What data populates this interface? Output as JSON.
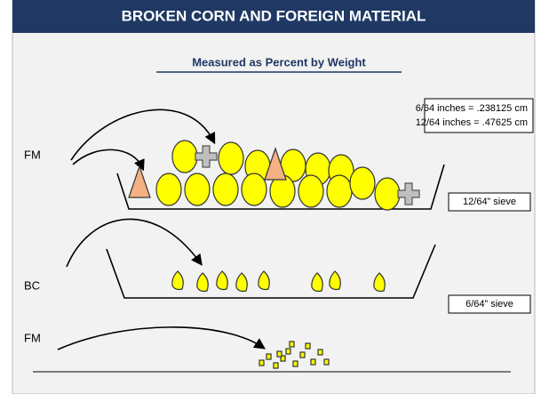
{
  "header": {
    "title": "BROKEN CORN AND FOREIGN MATERIAL",
    "subtitle": "Measured as Percent by Weight"
  },
  "note": {
    "lines": [
      "6/64 inches = .238125 cm",
      "12/64 inches = .47625 cm"
    ]
  },
  "stages": [
    {
      "label": "FM",
      "sieve": "12/64” sieve"
    },
    {
      "label": "BC",
      "sieve": "6/64” sieve"
    },
    {
      "label": "FM"
    }
  ]
}
